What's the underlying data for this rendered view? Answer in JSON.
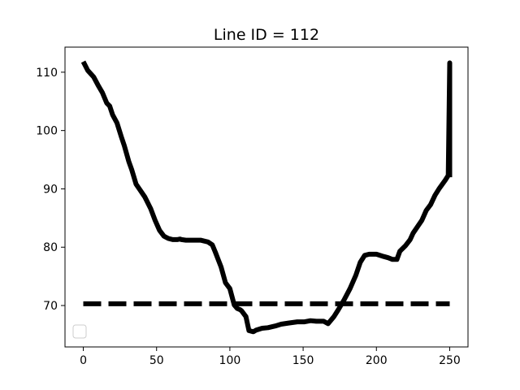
{
  "chart_data": {
    "type": "line",
    "title": "Line ID = 112",
    "xlabel": "",
    "ylabel": "",
    "xlim": [
      -12.5,
      262.5
    ],
    "ylim": [
      62.9,
      114.3
    ],
    "xticks": [
      0,
      50,
      100,
      150,
      200,
      250
    ],
    "yticks": [
      70,
      80,
      90,
      100,
      110
    ],
    "grid": false,
    "legend": "lower-left (empty)",
    "series": [
      {
        "style": "solid",
        "color": "#000000",
        "x": [
          0,
          3,
          7,
          10,
          13,
          16,
          18,
          20,
          23,
          26,
          28,
          31,
          33,
          36,
          39,
          42,
          46,
          49,
          52,
          55,
          58,
          61,
          64,
          66,
          67,
          70,
          75,
          80,
          85,
          88,
          90,
          92,
          94,
          97,
          100,
          103,
          105,
          107,
          108,
          111,
          113,
          116,
          118,
          122,
          126,
          131,
          135,
          140,
          146,
          151,
          155,
          159,
          164,
          167,
          171,
          174,
          178,
          182,
          186,
          189,
          192,
          195,
          198,
          200,
          205,
          208,
          211,
          214,
          216,
          220,
          223,
          225,
          228,
          231,
          234,
          237,
          240,
          243,
          247,
          249,
          250,
          250
        ],
        "y": [
          111.8,
          110.3,
          109.2,
          107.8,
          106.5,
          104.7,
          104.2,
          102.7,
          101.3,
          98.9,
          97.4,
          94.7,
          93.3,
          90.8,
          89.7,
          88.6,
          86.6,
          84.6,
          82.9,
          81.9,
          81.5,
          81.3,
          81.3,
          81.4,
          81.3,
          81.2,
          81.2,
          81.2,
          80.9,
          80.4,
          79.2,
          77.9,
          76.6,
          73.9,
          72.9,
          70.1,
          69.5,
          69.3,
          69.1,
          68.1,
          65.7,
          65.5,
          65.8,
          66.1,
          66.2,
          66.5,
          66.8,
          67.0,
          67.2,
          67.2,
          67.4,
          67.3,
          67.3,
          66.9,
          68.1,
          69.3,
          71.0,
          72.9,
          75.2,
          77.4,
          78.6,
          78.8,
          78.8,
          78.8,
          78.4,
          78.2,
          77.9,
          77.9,
          79.3,
          80.3,
          81.3,
          82.4,
          83.5,
          84.6,
          86.3,
          87.3,
          88.9,
          90.1,
          91.5,
          92.3,
          111.6,
          92.0
        ]
      },
      {
        "style": "dashed",
        "color": "#000000",
        "x": [
          0,
          250
        ],
        "y": [
          70.3,
          70.3
        ]
      }
    ]
  }
}
